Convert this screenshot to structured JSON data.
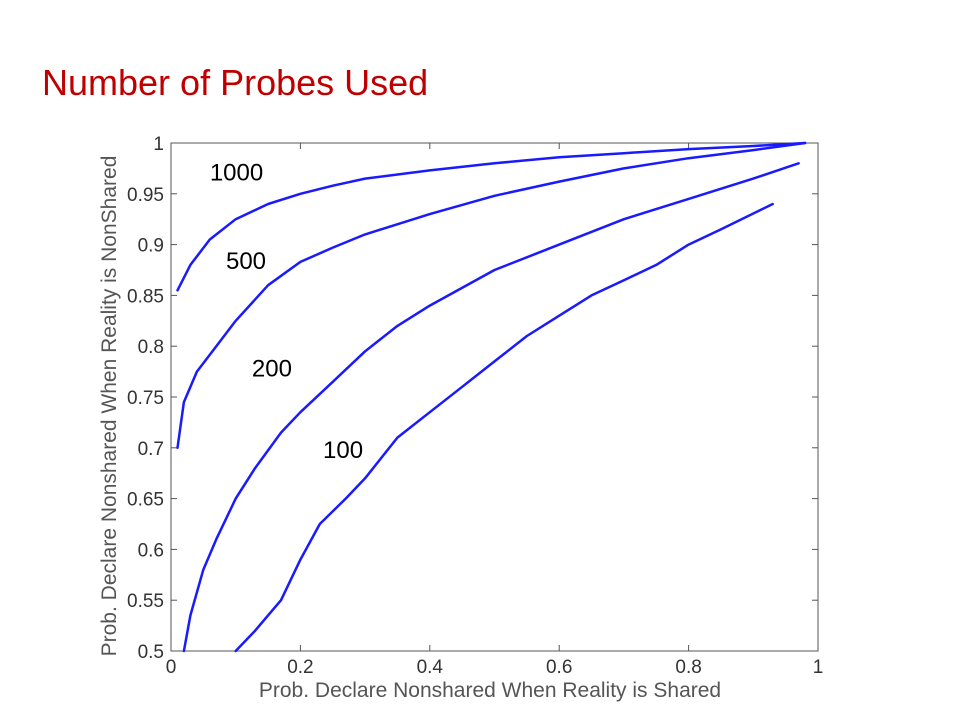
{
  "slide": {
    "title": "Number of Probes Used"
  },
  "chart_data": {
    "type": "line",
    "title": "",
    "xlabel": "Prob. Declare Nonshared When Reality is Shared",
    "ylabel": "Prob. Declare Nonshared When Reality is NonShared",
    "xlim": [
      0,
      1
    ],
    "ylim": [
      0.5,
      1
    ],
    "grid": false,
    "line_color": "#1a1aff",
    "x_ticks": [
      "0",
      "0.2",
      "0.4",
      "0.6",
      "0.8",
      "1"
    ],
    "y_ticks": [
      "0.5",
      "0.55",
      "0.6",
      "0.65",
      "0.7",
      "0.75",
      "0.8",
      "0.85",
      "0.9",
      "0.95",
      "1"
    ],
    "series": [
      {
        "name": "1000",
        "x": [
          0.01,
          0.03,
          0.06,
          0.1,
          0.15,
          0.2,
          0.25,
          0.3,
          0.4,
          0.5,
          0.6,
          0.7,
          0.8,
          0.9,
          0.98
        ],
        "y": [
          0.855,
          0.88,
          0.905,
          0.925,
          0.94,
          0.95,
          0.958,
          0.965,
          0.973,
          0.98,
          0.986,
          0.99,
          0.994,
          0.997,
          1.0
        ]
      },
      {
        "name": "500",
        "x": [
          0.01,
          0.02,
          0.04,
          0.07,
          0.1,
          0.15,
          0.2,
          0.25,
          0.3,
          0.4,
          0.5,
          0.6,
          0.7,
          0.8,
          0.9,
          0.98
        ],
        "y": [
          0.7,
          0.745,
          0.775,
          0.8,
          0.825,
          0.86,
          0.883,
          0.897,
          0.91,
          0.93,
          0.948,
          0.962,
          0.975,
          0.985,
          0.993,
          1.0
        ]
      },
      {
        "name": "200",
        "x": [
          0.02,
          0.03,
          0.05,
          0.07,
          0.1,
          0.13,
          0.17,
          0.2,
          0.25,
          0.3,
          0.35,
          0.4,
          0.5,
          0.6,
          0.7,
          0.8,
          0.9,
          0.97
        ],
        "y": [
          0.5,
          0.535,
          0.58,
          0.61,
          0.65,
          0.68,
          0.715,
          0.735,
          0.765,
          0.795,
          0.82,
          0.84,
          0.875,
          0.9,
          0.925,
          0.945,
          0.965,
          0.98
        ]
      },
      {
        "name": "100",
        "x": [
          0.1,
          0.13,
          0.17,
          0.2,
          0.23,
          0.27,
          0.3,
          0.35,
          0.4,
          0.45,
          0.5,
          0.55,
          0.6,
          0.65,
          0.7,
          0.75,
          0.8,
          0.85,
          0.93
        ],
        "y": [
          0.5,
          0.52,
          0.55,
          0.59,
          0.625,
          0.65,
          0.67,
          0.71,
          0.735,
          0.76,
          0.785,
          0.81,
          0.83,
          0.85,
          0.865,
          0.88,
          0.9,
          0.915,
          0.94
        ]
      }
    ],
    "annotations": [
      {
        "text": "1000",
        "x": 0.06,
        "y": 0.963
      },
      {
        "text": "500",
        "x": 0.085,
        "y": 0.876
      },
      {
        "text": "200",
        "x": 0.125,
        "y": 0.77
      },
      {
        "text": "100",
        "x": 0.235,
        "y": 0.69
      }
    ]
  }
}
